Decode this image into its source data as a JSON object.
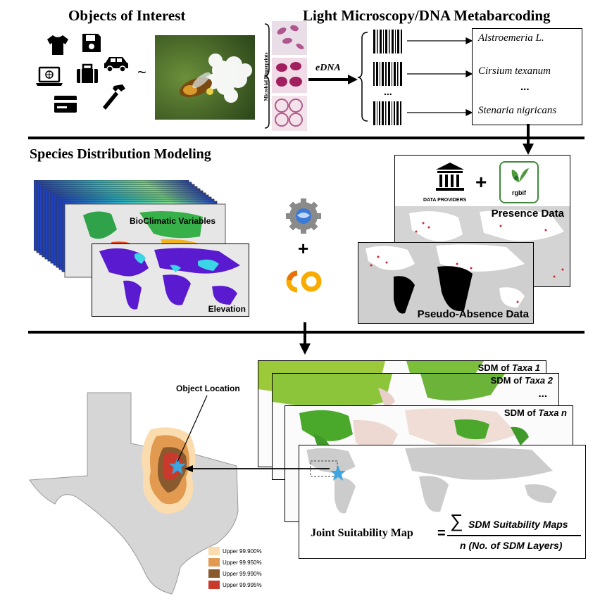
{
  "sections": {
    "objects_title": "Objects of Interest",
    "microscopy_title": "Light Microscopy/DNA Metabarcoding",
    "sdm_title": "Species Distribution Modeling"
  },
  "objects": {
    "icons": [
      "tshirt-icon",
      "floppy-disk-icon",
      "car-icon",
      "laptop-icon",
      "suitcase-icon",
      "credit-card-icon",
      "hammer-icon"
    ],
    "tilde": "~"
  },
  "microscopy": {
    "side_label": "Microbial Fingerprints",
    "edna_label": "eDNA",
    "ellipsis": "...",
    "taxa": [
      "Alstroemeria L.",
      "Cirsium texanum",
      "...",
      "Stenaria nigricans"
    ]
  },
  "sdm_inputs": {
    "bioclim_label": "BioClimatic Variables",
    "elevation_label": "Elevation",
    "plus": "+",
    "providers_label": "DATA PROVIDERS",
    "gbif_label": "rgbif",
    "presence_label": "Presence Data",
    "pseudo_absence_label": "Pseudo-Absence Data",
    "colab_label": "CO"
  },
  "output": {
    "sdm_cards": [
      {
        "prefix": "SDM of ",
        "taxon": "Taxa 1"
      },
      {
        "prefix": "SDM of ",
        "taxon": "Taxa 2"
      },
      {
        "prefix": "SDM of ",
        "taxon": "Taxa n"
      }
    ],
    "cards_ellipsis": "...",
    "object_location_label": "Object Location",
    "joint_label": "Joint Suitability Map",
    "equals": "=",
    "numerator": "SDM Suitability Maps",
    "sum_symbol": "∑",
    "denominator": "n (No. of SDM Layers)"
  },
  "legend": [
    {
      "label": "Upper 99.900%",
      "color": "#fbdcae"
    },
    {
      "label": "Upper 99.950%",
      "color": "#e19a4f"
    },
    {
      "label": "Upper 99.990%",
      "color": "#8a5a2f"
    },
    {
      "label": "Upper 99.995%",
      "color": "#c93a2c"
    }
  ],
  "colors": {
    "arrow": "#000000",
    "star": "#3da5e0",
    "map_land_grey": "#cccccc",
    "suitability_green": "#3f9a2a",
    "bioclim_blue": "#2844c8",
    "elevation_purple": "#5a1ad0"
  }
}
